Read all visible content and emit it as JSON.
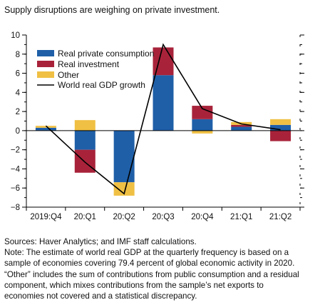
{
  "title": "Supply disruptions are weighing on private investment.",
  "chart_data": {
    "type": "bar",
    "stacked": true,
    "categories": [
      "2019:Q4",
      "20:Q1",
      "20:Q2",
      "20:Q3",
      "20:Q4",
      "21:Q1",
      "21:Q2"
    ],
    "series": [
      {
        "name": "Real private consumption",
        "color": "#1f5fa8",
        "values": [
          0.3,
          -2.0,
          -5.4,
          5.8,
          1.2,
          0.4,
          0.6
        ]
      },
      {
        "name": "Real investment",
        "color": "#a8233a",
        "values": [
          0.0,
          -2.4,
          0.0,
          2.9,
          1.4,
          0.2,
          -1.1
        ]
      },
      {
        "name": "Other",
        "color": "#f0c044",
        "values": [
          0.2,
          1.1,
          -1.4,
          0.0,
          -0.3,
          0.3,
          0.6
        ]
      }
    ],
    "line": {
      "name": "World real GDP growth",
      "color": "#000000",
      "values": [
        0.5,
        -3.3,
        -6.6,
        9.0,
        2.3,
        0.7,
        0.1
      ]
    },
    "ylim": [
      -8,
      10
    ],
    "yticks": [
      -8,
      -6,
      -4,
      -2,
      0,
      2,
      4,
      6,
      8,
      10
    ],
    "ytick_labels": [
      "−8",
      "−6",
      "−4",
      "−2",
      "0",
      "2",
      "4",
      "6",
      "8",
      "10"
    ],
    "legend_position": "top-left",
    "xlabel": "",
    "ylabel": ""
  },
  "notes": [
    "Sources: Haver Analytics; and IMF staff calculations.",
    "Note: The estimate of world real GDP at the quarterly frequency is based on a",
    "sample of economies covering 79.4 percent of global economic activity in 2020.",
    "“Other” includes the sum of contributions from public consumption and a residual",
    "component, which mixes contributions from the sample’s net exports to",
    "economies not covered and a statistical discrepancy."
  ]
}
